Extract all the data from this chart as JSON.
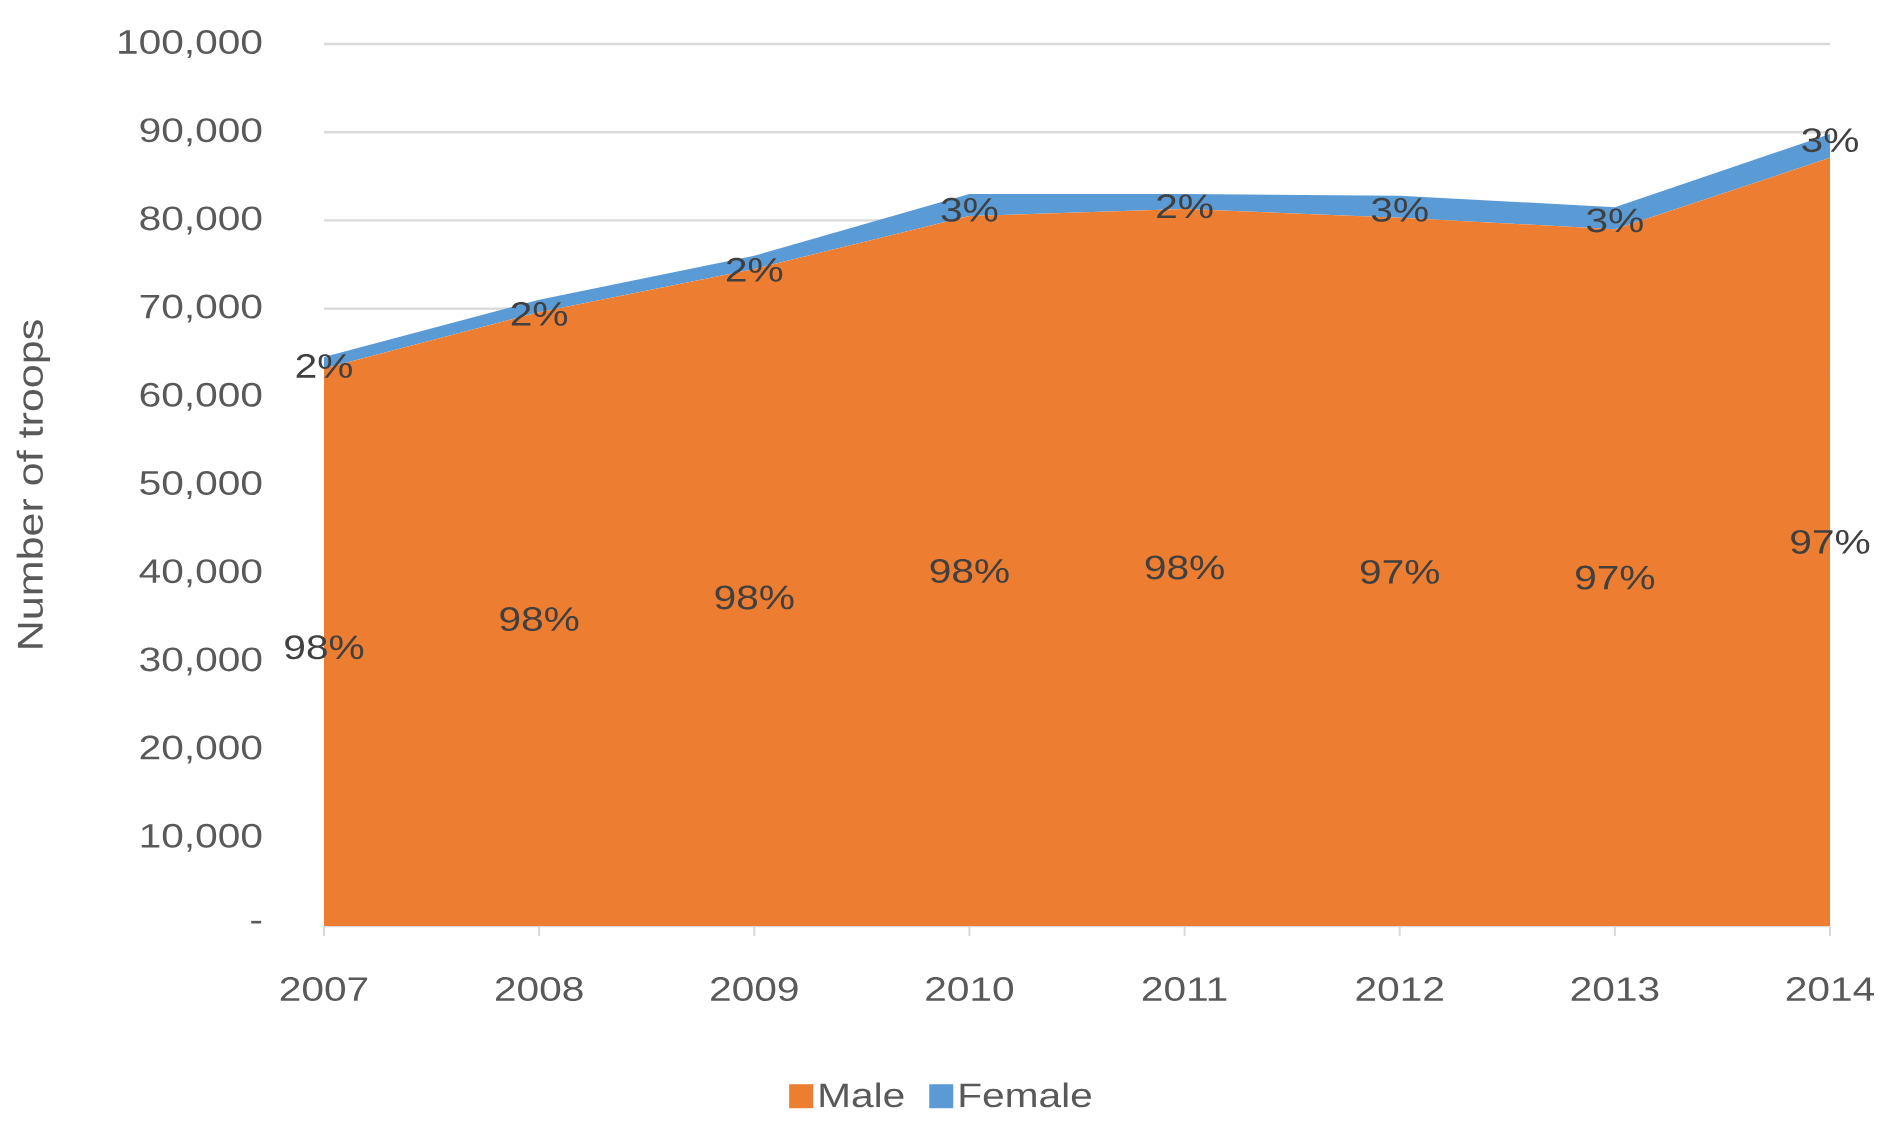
{
  "chart_data": {
    "type": "area",
    "stacked": true,
    "ylabel": "Number of troops",
    "categories": [
      "2007",
      "2008",
      "2009",
      "2010",
      "2011",
      "2012",
      "2013",
      "2014"
    ],
    "series": [
      {
        "name": "Male",
        "color": "#ed7d31",
        "values": [
          63200,
          69600,
          74500,
          80500,
          81300,
          80300,
          79000,
          87100
        ]
      },
      {
        "name": "Female",
        "color": "#5b9bd5",
        "values": [
          1300,
          1400,
          1500,
          2500,
          1700,
          2500,
          2500,
          2700
        ]
      }
    ],
    "ylim": [
      0,
      100000
    ],
    "yticks": [
      {
        "value": 0,
        "label": "-"
      },
      {
        "value": 10000,
        "label": "10,000"
      },
      {
        "value": 20000,
        "label": "20,000"
      },
      {
        "value": 30000,
        "label": "30,000"
      },
      {
        "value": 40000,
        "label": "40,000"
      },
      {
        "value": 50000,
        "label": "50,000"
      },
      {
        "value": 60000,
        "label": "60,000"
      },
      {
        "value": 70000,
        "label": "70,000"
      },
      {
        "value": 80000,
        "label": "80,000"
      },
      {
        "value": 90000,
        "label": "90,000"
      },
      {
        "value": 100000,
        "label": "100,000"
      }
    ],
    "annotations": [
      "98%",
      "98%",
      "98%",
      "98%",
      "98%",
      "97%",
      "97%",
      "97%",
      {
        "text": "2%",
        "x": "2007",
        "y": 63500
      },
      {
        "text": "2%",
        "x": "2008",
        "y": 69400
      },
      {
        "text": "2%",
        "x": "2009",
        "y": 74400
      },
      {
        "text": "3%",
        "x": "2010",
        "y": 81200
      },
      {
        "text": "2%",
        "x": "2011",
        "y": 81600
      },
      {
        "text": "3%",
        "x": "2012",
        "y": 81200
      },
      {
        "text": "3%",
        "x": "2013",
        "y": 80000
      },
      {
        "text": "3%",
        "x": "2014",
        "y": 89100
      }
    ],
    "grid": "y",
    "legend": "bottom"
  }
}
